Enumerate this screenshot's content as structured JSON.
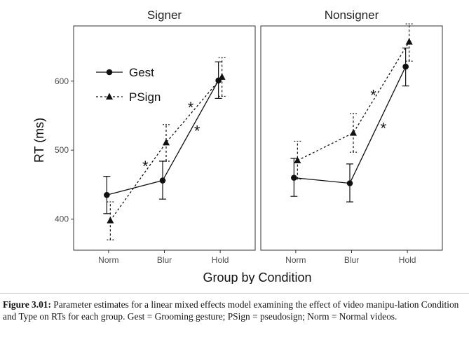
{
  "chart_data": {
    "type": "line",
    "ylabel": "RT (ms)",
    "xlabel": "Group by Condition",
    "categories": [
      "Norm",
      "Blur",
      "Hold"
    ],
    "ylim": [
      355,
      680
    ],
    "yticks": [
      400,
      500,
      600
    ],
    "legend": {
      "position": "top-left",
      "entries": [
        "Gest",
        "PSign"
      ]
    },
    "panels": [
      {
        "title": "Signer",
        "series": [
          {
            "name": "Gest",
            "values": [
              435,
              456,
              601
            ],
            "err_low": [
              408,
              429,
              575
            ],
            "err_high": [
              462,
              484,
              628
            ]
          },
          {
            "name": "PSign",
            "values": [
              398,
              511,
              606
            ],
            "err_low": [
              370,
              484,
              578
            ],
            "err_high": [
              425,
              537,
              634
            ]
          }
        ],
        "annotations": [
          "*",
          "*",
          "*"
        ]
      },
      {
        "title": "Nonsigner",
        "series": [
          {
            "name": "Gest",
            "values": [
              460,
              452,
              621
            ],
            "err_low": [
              433,
              425,
              593
            ],
            "err_high": [
              488,
              480,
              648
            ]
          },
          {
            "name": "PSign",
            "values": [
              485,
              525,
              657
            ],
            "err_low": [
              458,
              497,
              629
            ],
            "err_high": [
              513,
              553,
              683
            ]
          }
        ],
        "annotations": [
          "*",
          "*"
        ]
      }
    ]
  },
  "caption": {
    "label": "Figure 3.01:",
    "text": " Parameter estimates for a linear mixed effects model examining the effect of video manipu-lation Condition and Type on RTs for each group. Gest = Grooming gesture; PSign = pseudosign; Norm = Normal videos."
  }
}
